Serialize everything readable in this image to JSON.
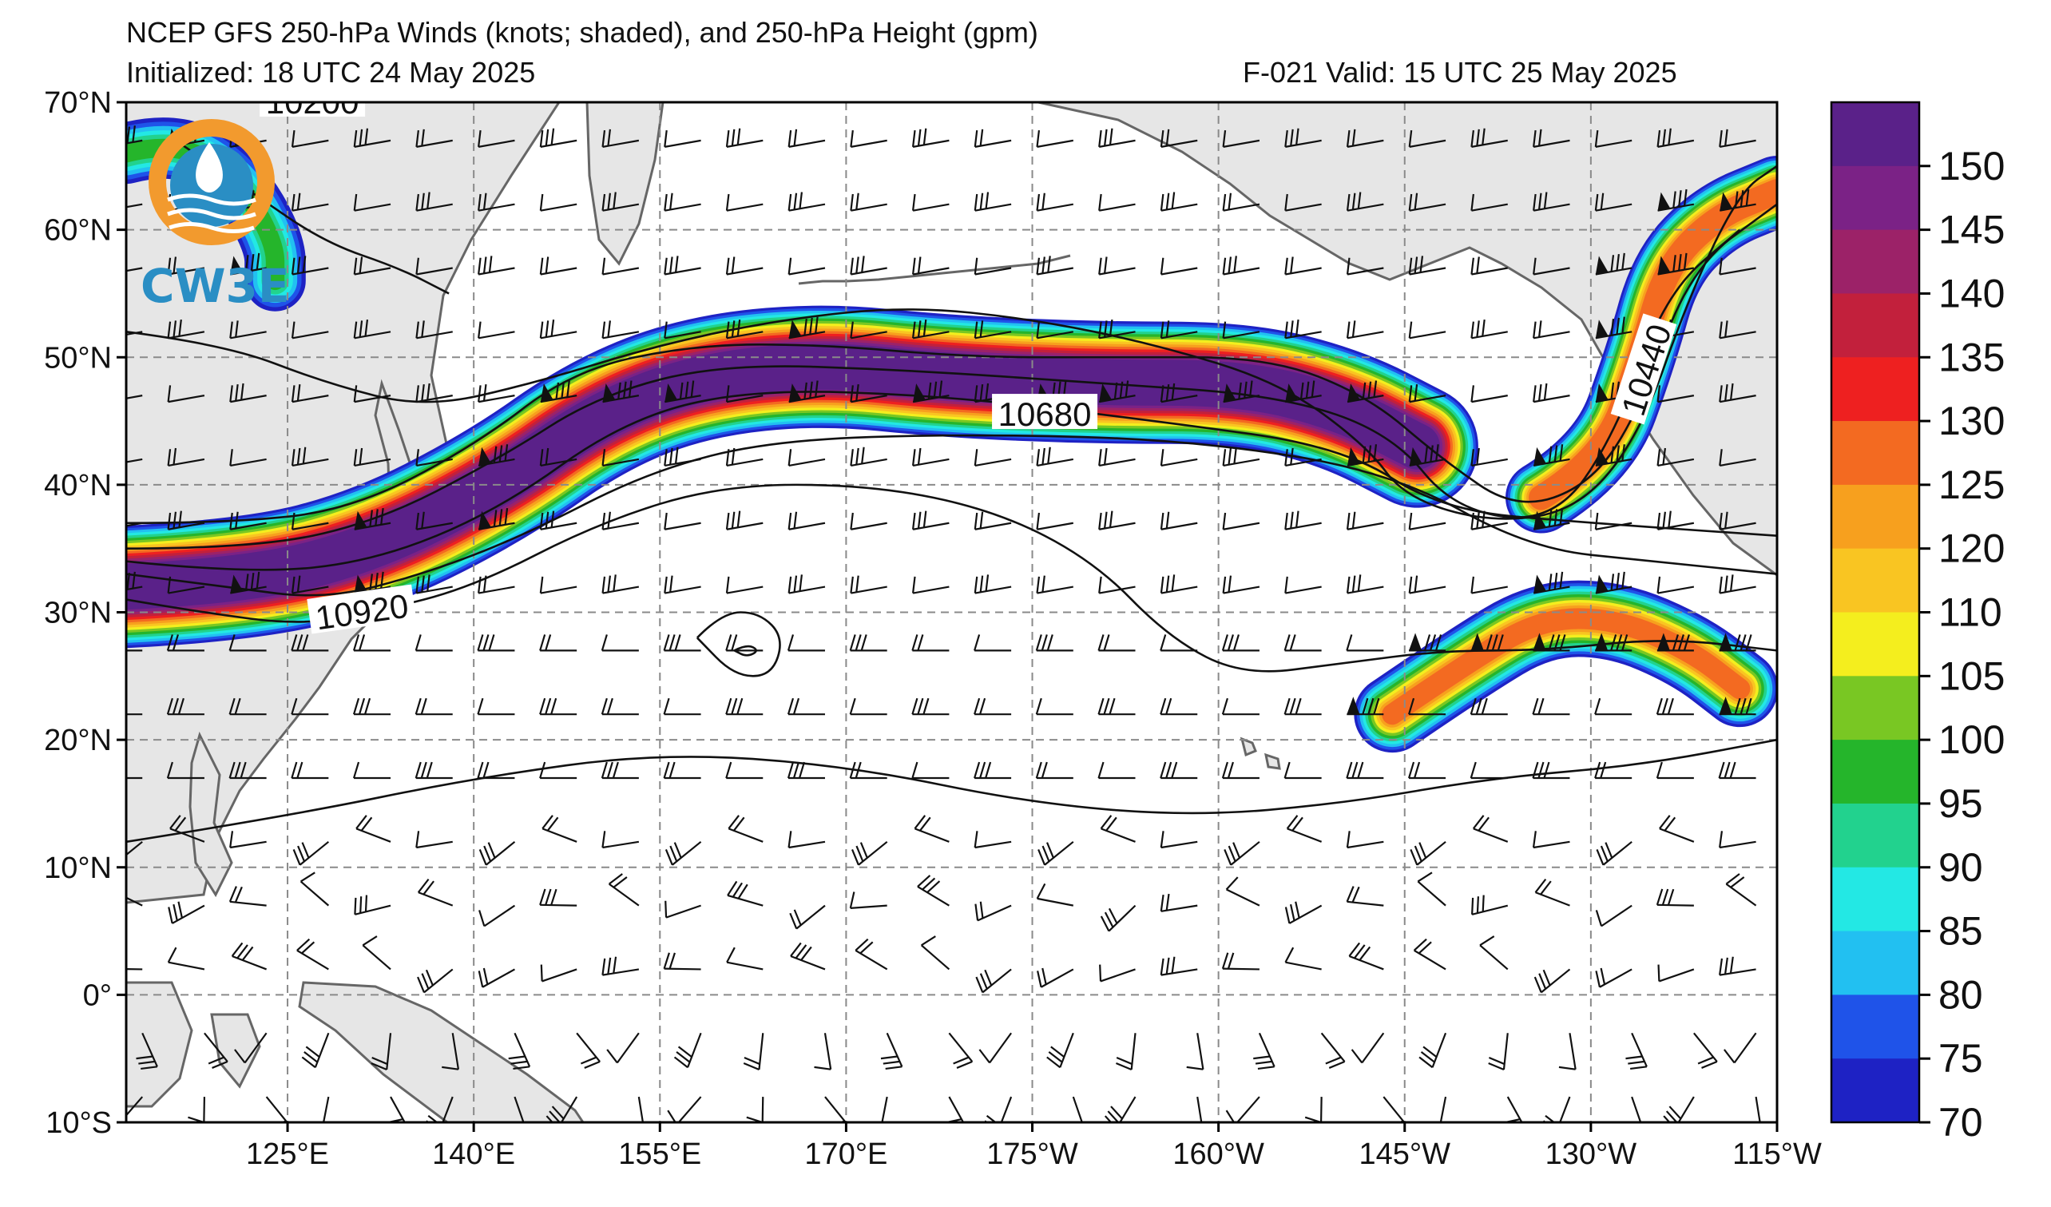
{
  "title": {
    "line1": "NCEP GFS 250-hPa Winds (knots; shaded), and 250-hPa Height (gpm)",
    "line2_left": "Initialized: 18 UTC 24 May 2025",
    "line2_right": "F-021  Valid: 15 UTC 25 May 2025"
  },
  "map": {
    "lon_range_east": [
      112,
      245
    ],
    "lat_range": [
      -10,
      70
    ],
    "lon_ticks": [
      "125°E",
      "140°E",
      "155°E",
      "170°E",
      "175°W",
      "160°W",
      "145°W",
      "130°W",
      "115°W"
    ],
    "lon_tick_values": [
      125,
      140,
      155,
      170,
      185,
      200,
      215,
      230,
      245
    ],
    "lat_ticks": [
      "70°N",
      "60°N",
      "50°N",
      "40°N",
      "30°N",
      "20°N",
      "10°N",
      "0°",
      "10°S"
    ],
    "lat_tick_values": [
      70,
      60,
      50,
      40,
      30,
      20,
      10,
      0,
      -10
    ],
    "gridlines": "dashed",
    "land_color": "#e6e6e6",
    "coast_color": "#666666"
  },
  "contours": {
    "labels": [
      {
        "text": "10200",
        "lon": 127,
        "lat": 70
      },
      {
        "text": "10680",
        "lon": 186,
        "lat": 45.5
      },
      {
        "text": "10920",
        "lon": 131,
        "lat": 30
      },
      {
        "text": "10440",
        "lon": 234.5,
        "lat": 49
      }
    ],
    "lines": [
      [
        [
          116,
          67
        ],
        [
          122,
          63
        ],
        [
          128,
          59
        ],
        [
          134,
          57
        ],
        [
          138,
          55
        ]
      ],
      [
        [
          112,
          52
        ],
        [
          120,
          51
        ],
        [
          128,
          48
        ],
        [
          136,
          46
        ],
        [
          145,
          48
        ],
        [
          155,
          51
        ],
        [
          165,
          53
        ],
        [
          175,
          54
        ],
        [
          185,
          53
        ],
        [
          195,
          51
        ],
        [
          205,
          48
        ],
        [
          212,
          43
        ],
        [
          215,
          39
        ],
        [
          222,
          37
        ],
        [
          229,
          38
        ],
        [
          234,
          44
        ],
        [
          238,
          55
        ],
        [
          242,
          63
        ],
        [
          245,
          65
        ]
      ],
      [
        [
          112,
          37
        ],
        [
          120,
          37
        ],
        [
          130,
          38
        ],
        [
          140,
          43
        ],
        [
          148,
          49
        ],
        [
          158,
          51
        ],
        [
          168,
          51
        ],
        [
          180,
          50
        ],
        [
          192,
          50
        ],
        [
          204,
          50
        ],
        [
          212,
          47
        ],
        [
          218,
          42
        ],
        [
          224,
          38
        ],
        [
          230,
          40
        ],
        [
          234,
          46
        ],
        [
          238,
          57
        ],
        [
          245,
          62
        ]
      ],
      [
        [
          112,
          35
        ],
        [
          122,
          35
        ],
        [
          132,
          37
        ],
        [
          142,
          42
        ],
        [
          150,
          47
        ],
        [
          160,
          49.5
        ],
        [
          175,
          49
        ],
        [
          190,
          48
        ],
        [
          205,
          47
        ],
        [
          214,
          44
        ],
        [
          219,
          38
        ],
        [
          227,
          37
        ],
        [
          232,
          44
        ],
        [
          236,
          55
        ],
        [
          242,
          60
        ]
      ],
      [
        [
          112,
          34
        ],
        [
          122,
          33
        ],
        [
          132,
          34
        ],
        [
          142,
          38
        ],
        [
          152,
          45
        ],
        [
          162,
          47.5
        ],
        [
          178,
          47
        ],
        [
          195,
          45
        ],
        [
          210,
          43
        ],
        [
          218,
          38
        ],
        [
          230,
          37
        ],
        [
          245,
          36
        ]
      ],
      [
        [
          112,
          33
        ],
        [
          120,
          32
        ],
        [
          128,
          31
        ],
        [
          136,
          33
        ],
        [
          144,
          36
        ],
        [
          154,
          41
        ],
        [
          164,
          43.5
        ],
        [
          180,
          44
        ],
        [
          198,
          43.5
        ],
        [
          214,
          41
        ],
        [
          225,
          35
        ],
        [
          235,
          34
        ],
        [
          245,
          33
        ]
      ],
      [
        [
          112,
          31
        ],
        [
          118,
          30
        ],
        [
          126,
          29
        ],
        [
          132,
          30
        ],
        [
          140,
          32
        ],
        [
          150,
          37
        ],
        [
          160,
          40
        ],
        [
          172,
          40
        ],
        [
          182,
          38
        ],
        [
          190,
          34
        ],
        [
          196,
          28
        ],
        [
          202,
          25
        ],
        [
          210,
          26
        ],
        [
          218,
          27
        ],
        [
          226,
          27
        ],
        [
          236,
          28
        ],
        [
          245,
          27
        ]
      ],
      [
        [
          112,
          12
        ],
        [
          125,
          14
        ],
        [
          140,
          17
        ],
        [
          155,
          19
        ],
        [
          170,
          18
        ],
        [
          185,
          15
        ],
        [
          198,
          14
        ],
        [
          210,
          15
        ],
        [
          222,
          17
        ],
        [
          234,
          18
        ],
        [
          245,
          20
        ]
      ],
      [
        [
          158,
          28
        ],
        [
          160,
          30
        ],
        [
          163,
          30
        ],
        [
          165,
          28
        ],
        [
          164,
          25
        ],
        [
          161,
          25
        ],
        [
          158,
          28
        ]
      ],
      [
        [
          161,
          27
        ],
        [
          162,
          27.5
        ],
        [
          163,
          27
        ],
        [
          162,
          26.5
        ],
        [
          161,
          27
        ]
      ]
    ]
  },
  "jets": [
    {
      "name": "main",
      "path": [
        [
          112,
          32
        ],
        [
          122,
          32.5
        ],
        [
          132,
          35
        ],
        [
          142,
          40
        ],
        [
          150,
          45.5
        ],
        [
          158,
          48.5
        ],
        [
          168,
          49.5
        ],
        [
          178,
          48.5
        ],
        [
          190,
          48
        ],
        [
          202,
          48
        ],
        [
          210,
          46
        ],
        [
          216,
          43
        ]
      ],
      "width": 4.8,
      "core": 1.6
    },
    {
      "name": "alaska",
      "path": [
        [
          226,
          39
        ],
        [
          231,
          42
        ],
        [
          234,
          50
        ],
        [
          236,
          57
        ],
        [
          240,
          61
        ],
        [
          245,
          63
        ]
      ],
      "width": 2.8,
      "core": 0.8
    },
    {
      "name": "subtropical",
      "path": [
        [
          214,
          22
        ],
        [
          220,
          26
        ],
        [
          226,
          29.5
        ],
        [
          232,
          29.5
        ],
        [
          238,
          27
        ],
        [
          242,
          24
        ]
      ],
      "width": 3.0,
      "core": 0.6
    },
    {
      "name": "nw",
      "path": [
        [
          112,
          66
        ],
        [
          116,
          67
        ],
        [
          121,
          64
        ],
        [
          124,
          59
        ],
        [
          124,
          56
        ]
      ],
      "width": 2.4,
      "core": 0.4
    }
  ],
  "colorbar": {
    "labels": [
      "150",
      "145",
      "140",
      "135",
      "130",
      "125",
      "120",
      "110",
      "105",
      "100",
      "95",
      "90",
      "85",
      "80",
      "75",
      "70"
    ],
    "colors": [
      "#5a2189",
      "#7b2286",
      "#9c2268",
      "#c2203c",
      "#ee2020",
      "#f36a21",
      "#f7a01e",
      "#f9c522",
      "#f4ee1e",
      "#79c723",
      "#25b52b",
      "#22d28e",
      "#23e8e4",
      "#22c0f1",
      "#1f53e9",
      "#1e22c4"
    ]
  },
  "logo": {
    "text": "CW3E"
  }
}
